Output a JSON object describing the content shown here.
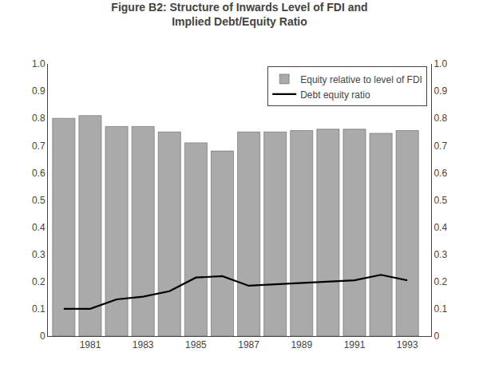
{
  "chart_data": {
    "type": "bar",
    "title": "Figure B2: Structure of Inwards Level of FDI and",
    "subtitle": "Implied Debt/Equity Ratio",
    "x": [
      1980,
      1981,
      1982,
      1983,
      1984,
      1985,
      1986,
      1987,
      1988,
      1989,
      1990,
      1991,
      1992,
      1993
    ],
    "series": [
      {
        "name": "Equity relative to level of FDI",
        "type": "bar",
        "color": "#aaaaaa",
        "values": [
          0.8,
          0.81,
          0.77,
          0.77,
          0.75,
          0.71,
          0.68,
          0.75,
          0.75,
          0.755,
          0.76,
          0.76,
          0.745,
          0.755
        ]
      },
      {
        "name": "Debt equity ratio",
        "type": "line",
        "color": "#000000",
        "values": [
          0.1,
          0.1,
          0.135,
          0.145,
          0.165,
          0.215,
          0.22,
          0.185,
          0.19,
          0.195,
          0.2,
          0.205,
          0.225,
          0.205
        ]
      }
    ],
    "xlim": [
      1979.4,
      1993.9
    ],
    "xticks": [
      1981,
      1983,
      1985,
      1987,
      1989,
      1991,
      1993
    ],
    "ylim": [
      0,
      1.0
    ],
    "yticks": [
      0,
      0.1,
      0.2,
      0.3,
      0.4,
      0.5,
      0.6,
      0.7,
      0.8,
      0.9,
      {
        "value": 1.0,
        "label": "1.0"
      }
    ],
    "y2lim": [
      0,
      1.0
    ],
    "y2ticks": [
      0,
      0.1,
      0.2,
      0.3,
      0.4,
      0.5,
      0.6,
      0.7,
      0.8,
      0.9,
      {
        "value": 1.0,
        "label": "1.0"
      }
    ],
    "grid": false,
    "legend": "upper right"
  }
}
